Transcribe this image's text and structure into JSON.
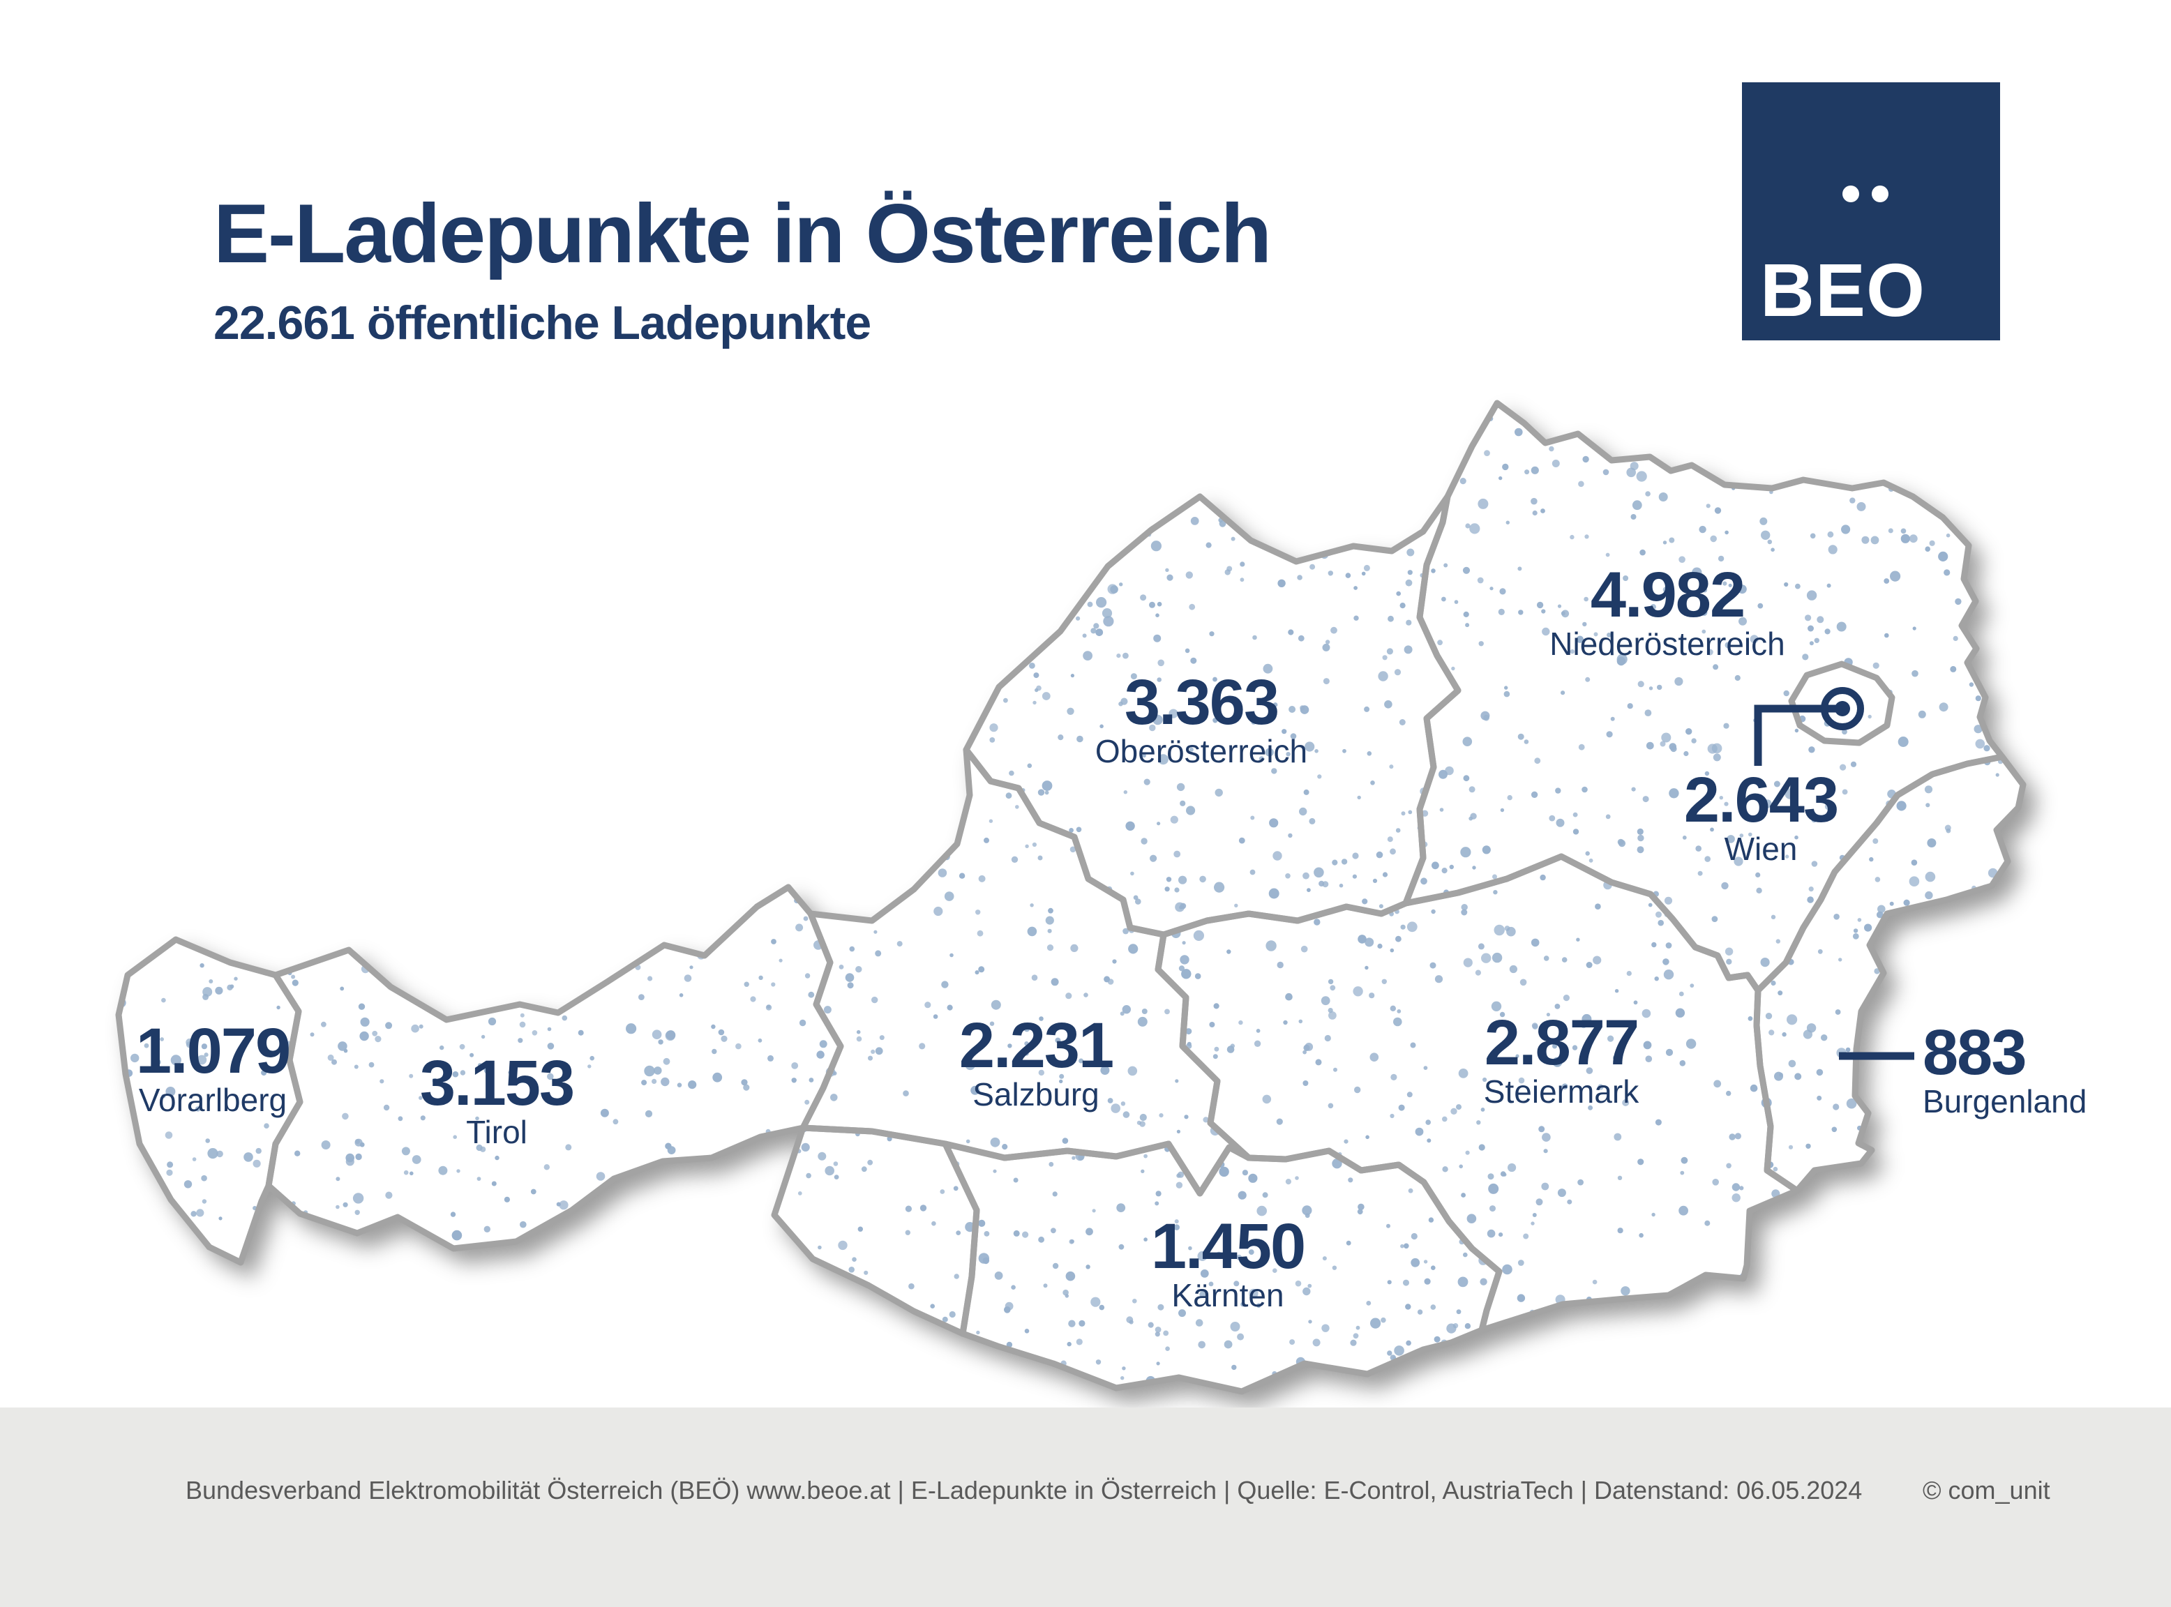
{
  "header": {
    "title": "E-Ladepunkte in Österreich",
    "subtitle": "22.661 öffentliche Ladepunkte"
  },
  "logo": {
    "text": "BEO",
    "meaning": "BEÖ"
  },
  "colors": {
    "accent": "#1F3A66",
    "logo_bg": "#1F3A63",
    "map_fill": "#FFFFFF",
    "map_border": "#A3A3A3",
    "dot": "#98B1CD",
    "footer_bg": "#E9E9E7",
    "footer_text": "#595959"
  },
  "map": {
    "regions": [
      {
        "name": "Vorarlberg",
        "value": "1.079"
      },
      {
        "name": "Tirol",
        "value": "3.153"
      },
      {
        "name": "Salzburg",
        "value": "2.231"
      },
      {
        "name": "Oberösterreich",
        "value": "3.363"
      },
      {
        "name": "Niederösterreich",
        "value": "4.982"
      },
      {
        "name": "Wien",
        "value": "2.643"
      },
      {
        "name": "Burgenland",
        "value": "883"
      },
      {
        "name": "Steiermark",
        "value": "2.877"
      },
      {
        "name": "Kärnten",
        "value": "1.450"
      }
    ]
  },
  "chart_data": {
    "type": "map",
    "title": "E-Ladepunkte in Österreich",
    "total_label": "22.661 öffentliche Ladepunkte",
    "total": 22661,
    "unit": "öffentliche Ladepunkte",
    "regions": [
      {
        "name": "Vorarlberg",
        "value": 1079
      },
      {
        "name": "Tirol",
        "value": 3153
      },
      {
        "name": "Salzburg",
        "value": 2231
      },
      {
        "name": "Oberösterreich",
        "value": 3363
      },
      {
        "name": "Niederösterreich",
        "value": 4982
      },
      {
        "name": "Wien",
        "value": 2643
      },
      {
        "name": "Burgenland",
        "value": 883
      },
      {
        "name": "Steiermark",
        "value": 2877
      },
      {
        "name": "Kärnten",
        "value": 1450
      }
    ]
  },
  "footer": {
    "text": "Bundesverband Elektromobilität Österreich (BEÖ) www.beoe.at | E-Ladepunkte in Österreich | Quelle: E-Control, AustriaTech | Datenstand: 06.05.2024",
    "credit": "© com_unit"
  }
}
